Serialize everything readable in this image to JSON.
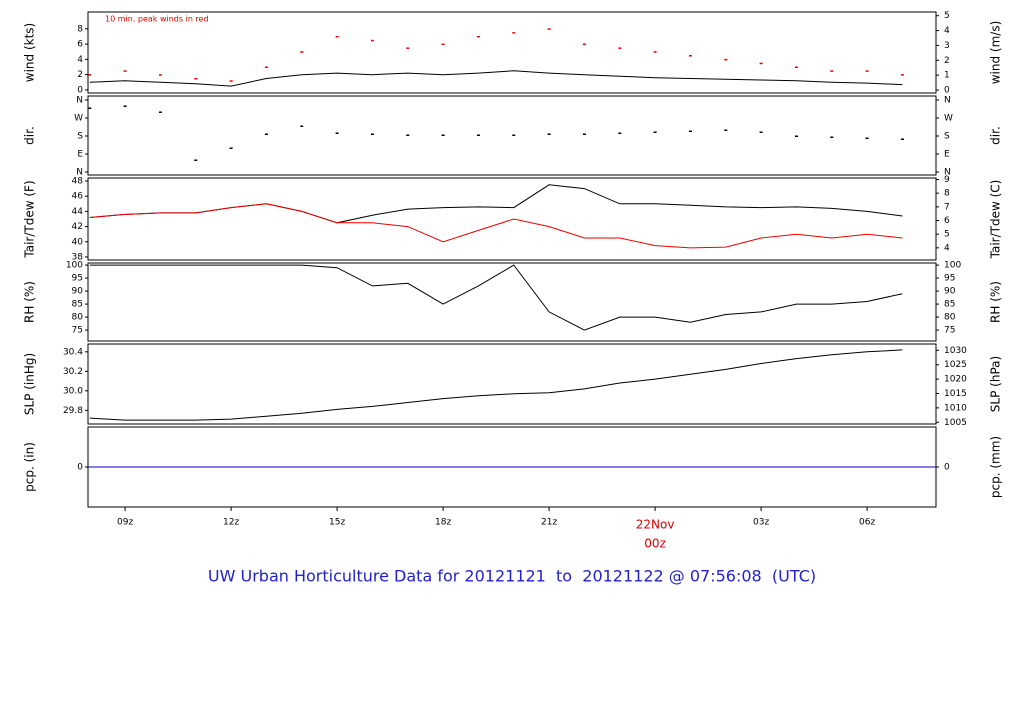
{
  "chart_data": [
    {
      "type": "line",
      "ylabel": "wind (kts)",
      "y2label": "wind (m/s)",
      "annotation": "10 min. peak winds in red",
      "xlim": [
        7.95,
        31.95
      ],
      "ylim": [
        -0.4,
        10.2
      ],
      "yticks": [
        0,
        2,
        4,
        6,
        8
      ],
      "y2lim": [
        -0.2,
        5.25
      ],
      "y2ticks": [
        0,
        1,
        2,
        3,
        4,
        5
      ],
      "x": [
        8,
        9,
        10,
        11,
        12,
        13,
        14,
        15,
        16,
        17,
        18,
        19,
        20,
        21,
        22,
        23,
        24,
        25,
        26,
        27,
        28,
        29,
        30,
        31
      ],
      "series": [
        {
          "name": "wind",
          "style": "line",
          "color": "#000000",
          "values": [
            1,
            1.2,
            1,
            0.8,
            0.5,
            1.5,
            2,
            2.2,
            2,
            2.2,
            2,
            2.2,
            2.5,
            2.2,
            2,
            1.8,
            1.6,
            1.5,
            1.4,
            1.3,
            1.2,
            1,
            0.9,
            0.7
          ]
        },
        {
          "name": "peak",
          "style": "points",
          "color": "#ee0000",
          "values": [
            2,
            2.5,
            2,
            1.5,
            1.2,
            3,
            5,
            7,
            6.5,
            5.5,
            6,
            7,
            7.5,
            8,
            6,
            5.5,
            5,
            4.5,
            4,
            3.5,
            3,
            2.5,
            2.5,
            2
          ]
        }
      ]
    },
    {
      "type": "scatter",
      "ylabel": "dir.",
      "y2label": "dir.",
      "xlim": [
        7.95,
        31.95
      ],
      "ylim": [
        -15,
        380
      ],
      "yticks": [
        {
          "value": 0,
          "label": "N"
        },
        {
          "value": 90,
          "label": "E"
        },
        {
          "value": 180,
          "label": "S"
        },
        {
          "value": 270,
          "label": "W"
        },
        {
          "value": 360,
          "label": "N"
        }
      ],
      "x": [
        8,
        9,
        10,
        11,
        12,
        13,
        14,
        15,
        16,
        17,
        18,
        19,
        20,
        21,
        22,
        23,
        24,
        25,
        26,
        27,
        28,
        29,
        30,
        31
      ],
      "series": [
        {
          "name": "dir",
          "style": "points",
          "color": "#000000",
          "values": [
            320,
            330,
            300,
            60,
            120,
            190,
            230,
            195,
            190,
            185,
            185,
            185,
            185,
            190,
            190,
            195,
            200,
            205,
            210,
            200,
            180,
            175,
            170,
            165
          ]
        }
      ]
    },
    {
      "type": "line",
      "ylabel": "Tair/Tdew (F)",
      "y2label": "Tair/Tdew (C)",
      "xlim": [
        7.95,
        31.95
      ],
      "ylim": [
        37.6,
        48.4
      ],
      "yticks": [
        38,
        40,
        42,
        44,
        46,
        48
      ],
      "y2lim": [
        3.11,
        9.11
      ],
      "y2ticks": [
        4,
        5,
        6,
        7,
        8,
        9
      ],
      "x": [
        8,
        9,
        10,
        11,
        12,
        13,
        14,
        15,
        16,
        17,
        18,
        19,
        20,
        21,
        22,
        23,
        24,
        25,
        26,
        27,
        28,
        29,
        30,
        31
      ],
      "series": [
        {
          "name": "Tair",
          "style": "line",
          "color": "#000000",
          "values": [
            43.2,
            43.6,
            43.8,
            43.8,
            44.5,
            45,
            44,
            42.5,
            43.5,
            44.3,
            44.5,
            44.6,
            44.5,
            47.5,
            47,
            45,
            45,
            44.8,
            44.6,
            44.5,
            44.6,
            44.4,
            44,
            43.4
          ]
        },
        {
          "name": "Tdew",
          "style": "line",
          "color": "#ee0000",
          "values": [
            43.2,
            43.6,
            43.8,
            43.8,
            44.5,
            45,
            44,
            42.5,
            42.5,
            42,
            40,
            41.5,
            43,
            42,
            40.5,
            40.5,
            39.5,
            39.2,
            39.3,
            40.5,
            41,
            40.5,
            41,
            40.5
          ]
        }
      ]
    },
    {
      "type": "line",
      "ylabel": "RH (%)",
      "y2label": "RH (%)",
      "xlim": [
        7.95,
        31.95
      ],
      "ylim": [
        70.8,
        100.8
      ],
      "yticks": [
        75,
        80,
        85,
        90,
        95,
        100
      ],
      "y2lim": [
        70.8,
        100.8
      ],
      "y2ticks": [
        75,
        80,
        85,
        90,
        95,
        100
      ],
      "x": [
        8,
        9,
        10,
        11,
        12,
        13,
        14,
        15,
        16,
        17,
        18,
        19,
        20,
        21,
        22,
        23,
        24,
        25,
        26,
        27,
        28,
        29,
        30,
        31
      ],
      "series": [
        {
          "name": "RH",
          "style": "line",
          "color": "#000000",
          "values": [
            100,
            100,
            100,
            100,
            100,
            100,
            100,
            99,
            92,
            93,
            85,
            92,
            100,
            82,
            75,
            80,
            80,
            78,
            81,
            82,
            85,
            85,
            86,
            89
          ]
        }
      ]
    },
    {
      "type": "line",
      "ylabel": "SLP (inHg)",
      "y2label": "SLP (hPa)",
      "xlim": [
        7.95,
        31.95
      ],
      "ylim": [
        29.66,
        30.48
      ],
      "yticks": [
        {
          "value": 29.8,
          "label": "29.8"
        },
        {
          "value": 30,
          "label": "30.0"
        },
        {
          "value": 30.2,
          "label": "30.2"
        },
        {
          "value": 30.4,
          "label": "30.4"
        }
      ],
      "y2lim": [
        1004.4,
        1032.2
      ],
      "y2ticks": [
        1005,
        1010,
        1015,
        1020,
        1025,
        1030
      ],
      "x": [
        8,
        9,
        10,
        11,
        12,
        13,
        14,
        15,
        16,
        17,
        18,
        19,
        20,
        21,
        22,
        23,
        24,
        25,
        26,
        27,
        28,
        29,
        30,
        31
      ],
      "series": [
        {
          "name": "SLP",
          "style": "line",
          "color": "#000000",
          "values": [
            29.72,
            29.7,
            29.7,
            29.7,
            29.71,
            29.74,
            29.77,
            29.81,
            29.84,
            29.88,
            29.92,
            29.95,
            29.97,
            29.98,
            30.02,
            30.08,
            30.12,
            30.17,
            30.22,
            30.28,
            30.33,
            30.37,
            30.4,
            30.42
          ]
        }
      ]
    },
    {
      "type": "line",
      "ylabel": "pcp. (in)",
      "y2label": "pcp. (mm)",
      "title": "UW Urban Horticulture Data for 20121121  to  20121122 @ 07:56:08  (UTC)",
      "date_label": "22Nov",
      "xlim": [
        7.95,
        31.95
      ],
      "ylim": [
        -1,
        1
      ],
      "yticks": [
        0
      ],
      "y2lim": [
        -1,
        1
      ],
      "y2ticks": [
        0
      ],
      "xticks": [
        {
          "value": 9,
          "label": "09z"
        },
        {
          "value": 12,
          "label": "12z"
        },
        {
          "value": 15,
          "label": "15z"
        },
        {
          "value": 18,
          "label": "18z"
        },
        {
          "value": 21,
          "label": "21z"
        },
        {
          "value": 24,
          "label": "00z",
          "color": "#dd0000"
        },
        {
          "value": 27,
          "label": "03z"
        },
        {
          "value": 30,
          "label": "06z"
        }
      ],
      "x": [
        7.95,
        31.95
      ],
      "series": [
        {
          "name": "pcp",
          "style": "line",
          "color": "#0000cc",
          "values": [
            0,
            0
          ]
        }
      ]
    }
  ]
}
